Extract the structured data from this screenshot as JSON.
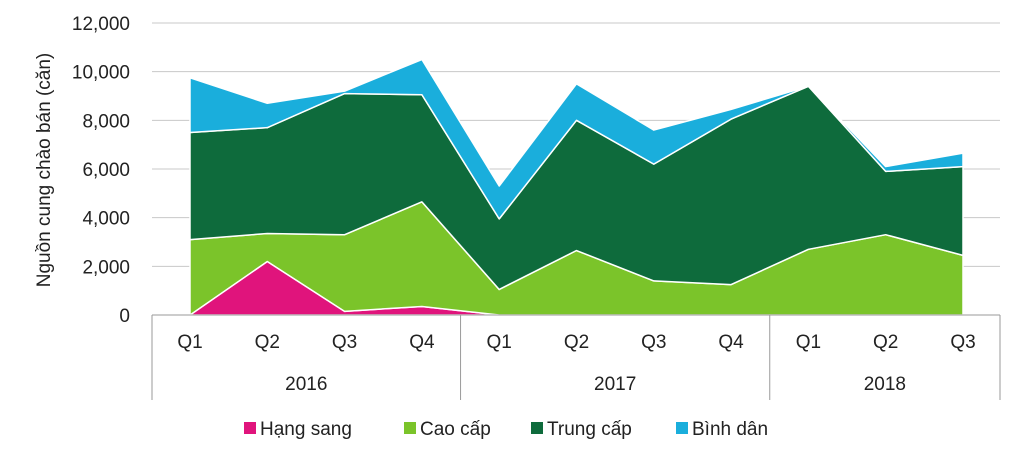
{
  "chart_data": {
    "type": "area",
    "stacked": true,
    "ylabel": "Nguồn cung chào bán (căn)",
    "ylim": [
      0,
      12000
    ],
    "yticks": [
      0,
      2000,
      4000,
      6000,
      8000,
      10000,
      12000
    ],
    "ytick_labels": [
      "0",
      "2,000",
      "4,000",
      "6,000",
      "8,000",
      "10,000",
      "12,000"
    ],
    "grid": true,
    "legend": "bottom",
    "categories": [
      "Q1",
      "Q2",
      "Q3",
      "Q4",
      "Q1",
      "Q2",
      "Q3",
      "Q4",
      "Q1",
      "Q2",
      "Q3"
    ],
    "groups": [
      {
        "label": "2016",
        "count": 4
      },
      {
        "label": "2017",
        "count": 4
      },
      {
        "label": "2018",
        "count": 3
      }
    ],
    "series": [
      {
        "name": "Hạng sang",
        "color": "#E0147C",
        "values": [
          0,
          2200,
          150,
          350,
          0,
          0,
          0,
          0,
          0,
          0,
          0
        ]
      },
      {
        "name": "Cao cấp",
        "color": "#7BC42A",
        "values": [
          3100,
          1150,
          3150,
          4300,
          1050,
          2650,
          1400,
          1250,
          2700,
          3300,
          2450
        ]
      },
      {
        "name": "Trung cấp",
        "color": "#0E6B3C",
        "values": [
          4400,
          4350,
          5800,
          4400,
          2900,
          5350,
          4800,
          6800,
          6700,
          2600,
          3650
        ]
      },
      {
        "name": "Bình dân",
        "color": "#1AAEDC",
        "values": [
          2250,
          1000,
          100,
          1450,
          1350,
          1500,
          1400,
          400,
          0,
          200,
          550
        ]
      }
    ]
  }
}
